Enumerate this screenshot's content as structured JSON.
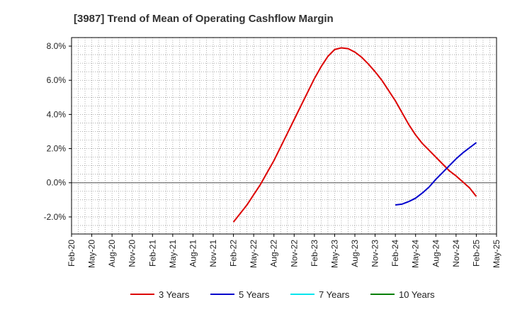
{
  "chart_data": {
    "type": "line",
    "title": "[3987]  Trend of Mean of Operating Cashflow Margin",
    "xlabel": "",
    "ylabel": "",
    "ylim": [
      -3.0,
      8.5
    ],
    "y_ticks": [
      -2.0,
      0.0,
      2.0,
      4.0,
      6.0,
      8.0
    ],
    "y_tick_labels": [
      "-2.0%",
      "0.0%",
      "2.0%",
      "4.0%",
      "6.0%",
      "8.0%"
    ],
    "x_tick_labels": [
      "Feb-20",
      "May-20",
      "Aug-20",
      "Nov-20",
      "Feb-21",
      "May-21",
      "Aug-21",
      "Nov-21",
      "Feb-22",
      "May-22",
      "Aug-22",
      "Nov-22",
      "Feb-23",
      "May-23",
      "Aug-23",
      "Nov-23",
      "Feb-24",
      "May-24",
      "Aug-24",
      "Nov-24",
      "Feb-25",
      "May-25"
    ],
    "grid": true,
    "legend_position": "bottom",
    "series": [
      {
        "name": "3 Years",
        "color": "#dd0000",
        "points": [
          [
            "Feb-22",
            -2.3
          ],
          [
            "Mar-22",
            -1.8
          ],
          [
            "Apr-22",
            -1.3
          ],
          [
            "May-22",
            -0.7
          ],
          [
            "Jun-22",
            -0.1
          ],
          [
            "Jul-22",
            0.6
          ],
          [
            "Aug-22",
            1.3
          ],
          [
            "Sep-22",
            2.1
          ],
          [
            "Oct-22",
            2.9
          ],
          [
            "Nov-22",
            3.7
          ],
          [
            "Dec-22",
            4.5
          ],
          [
            "Jan-23",
            5.3
          ],
          [
            "Feb-23",
            6.1
          ],
          [
            "Mar-23",
            6.8
          ],
          [
            "Apr-23",
            7.4
          ],
          [
            "May-23",
            7.8
          ],
          [
            "Jun-23",
            7.9
          ],
          [
            "Jul-23",
            7.85
          ],
          [
            "Aug-23",
            7.65
          ],
          [
            "Sep-23",
            7.35
          ],
          [
            "Oct-23",
            6.95
          ],
          [
            "Nov-23",
            6.5
          ],
          [
            "Dec-23",
            6.0
          ],
          [
            "Jan-24",
            5.4
          ],
          [
            "Feb-24",
            4.8
          ],
          [
            "Mar-24",
            4.1
          ],
          [
            "Apr-24",
            3.4
          ],
          [
            "May-24",
            2.8
          ],
          [
            "Jun-24",
            2.3
          ],
          [
            "Jul-24",
            1.9
          ],
          [
            "Aug-24",
            1.5
          ],
          [
            "Sep-24",
            1.1
          ],
          [
            "Oct-24",
            0.7
          ],
          [
            "Nov-24",
            0.4
          ],
          [
            "Dec-24",
            0.05
          ],
          [
            "Jan-25",
            -0.3
          ],
          [
            "Feb-25",
            -0.8
          ]
        ]
      },
      {
        "name": "5 Years",
        "color": "#0000cc",
        "points": [
          [
            "Feb-24",
            -1.3
          ],
          [
            "Mar-24",
            -1.25
          ],
          [
            "Apr-24",
            -1.1
          ],
          [
            "May-24",
            -0.9
          ],
          [
            "Jun-24",
            -0.6
          ],
          [
            "Jul-24",
            -0.25
          ],
          [
            "Aug-24",
            0.2
          ],
          [
            "Sep-24",
            0.6
          ],
          [
            "Oct-24",
            1.0
          ],
          [
            "Nov-24",
            1.4
          ],
          [
            "Dec-24",
            1.75
          ],
          [
            "Jan-25",
            2.05
          ],
          [
            "Feb-25",
            2.35
          ]
        ]
      },
      {
        "name": "7 Years",
        "color": "#00e5ee",
        "points": []
      },
      {
        "name": "10 Years",
        "color": "#008000",
        "points": []
      }
    ]
  }
}
